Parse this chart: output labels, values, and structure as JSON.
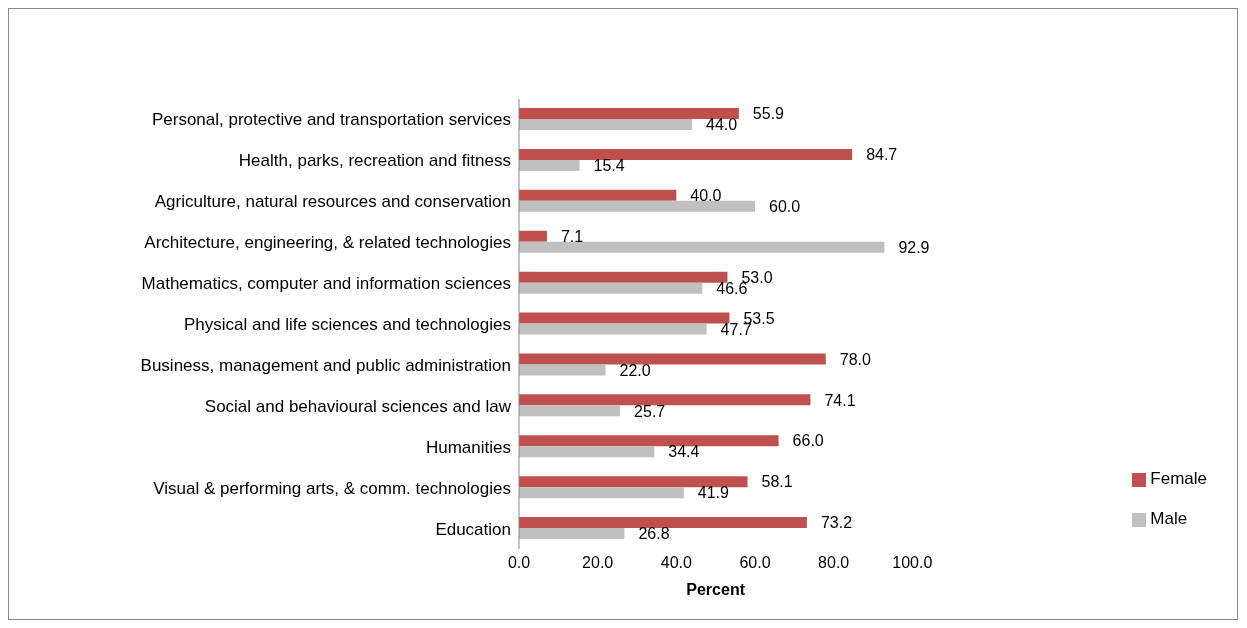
{
  "chart_data": {
    "type": "bar",
    "orientation": "horizontal",
    "xlabel": "Percent",
    "categories": [
      "Personal, protective and transportation services",
      "Health, parks, recreation and fitness",
      "Agriculture, natural resources and conservation",
      "Architecture, engineering, & related technologies",
      "Mathematics, computer and information sciences",
      "Physical and life sciences and technologies",
      "Business, management and public administration",
      "Social and behavioural sciences and law",
      "Humanities",
      "Visual & performing arts, & comm. technologies",
      "Education"
    ],
    "series": [
      {
        "name": "Female",
        "color": "#c0504d",
        "values": [
          55.9,
          84.7,
          40.0,
          7.1,
          53.0,
          53.5,
          78.0,
          74.1,
          66.0,
          58.1,
          73.2
        ],
        "value_labels": [
          "55.9",
          "84.7",
          "40.0",
          "7.1",
          "53.0",
          "53.5",
          "78.0",
          "74.1",
          "66.0",
          "58.1",
          "73.2"
        ]
      },
      {
        "name": "Male",
        "color": "#c0c0c0",
        "values": [
          44.0,
          15.4,
          60.0,
          92.9,
          46.6,
          47.7,
          22.0,
          25.7,
          34.4,
          41.9,
          26.8
        ],
        "value_labels": [
          "44.0",
          "15.4",
          "60.0",
          "92.9",
          "46.6",
          "47.7",
          "22.0",
          "25.7",
          "34.4",
          "41.9",
          "26.8"
        ]
      }
    ],
    "xlim": [
      0,
      100
    ],
    "xticks": [
      {
        "value": 0,
        "label": "0.0"
      },
      {
        "value": 20,
        "label": "20.0"
      },
      {
        "value": 40,
        "label": "40.0"
      },
      {
        "value": 60,
        "label": "60.0"
      },
      {
        "value": 80,
        "label": "80.0"
      },
      {
        "value": 100,
        "label": "100.0"
      }
    ],
    "grid": false,
    "legend": "right"
  }
}
